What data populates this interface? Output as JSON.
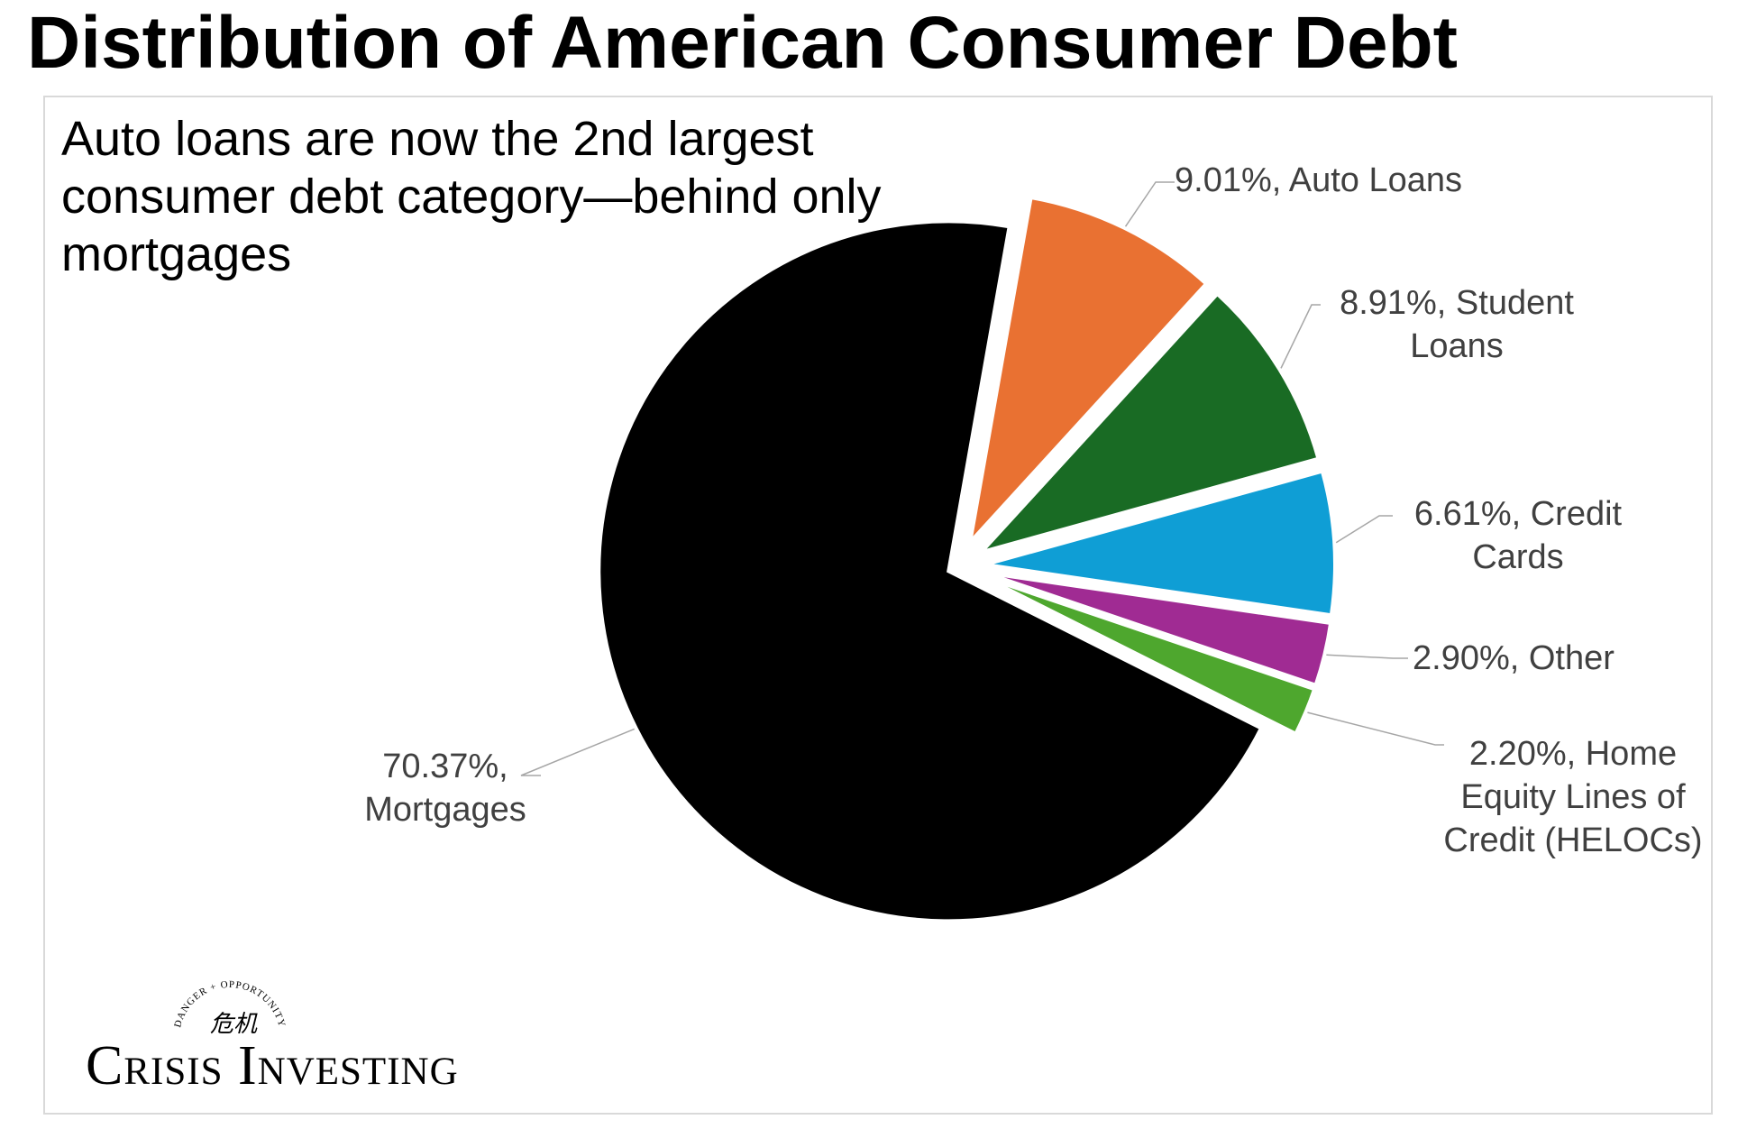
{
  "title": "Distribution of American Consumer Debt",
  "subtitle": "Auto loans are now the 2nd largest consumer debt category—behind only mortgages",
  "logo": {
    "tagline": "DANGER + OPPORTUNITY",
    "glyph": "危机",
    "name": "Crisis Investing"
  },
  "chart_data": {
    "type": "pie",
    "title": "",
    "slices": [
      {
        "name": "Auto Loans",
        "value": 9.01,
        "label_lines": [
          "9.01%, Auto Loans"
        ],
        "color": "#E97132"
      },
      {
        "name": "Student Loans",
        "value": 8.91,
        "label_lines": [
          "8.91%, Student",
          "Loans"
        ],
        "color": "#196B24"
      },
      {
        "name": "Credit Cards",
        "value": 6.61,
        "label_lines": [
          "6.61%, Credit",
          "Cards"
        ],
        "color": "#0F9ED5"
      },
      {
        "name": "Other",
        "value": 2.9,
        "label_lines": [
          "2.90%, Other"
        ],
        "color": "#A02B93"
      },
      {
        "name": "Home Equity Lines of Credit (HELOCs)",
        "value": 2.2,
        "label_lines": [
          "2.20%, Home",
          "Equity Lines of",
          "Credit (HELOCs)"
        ],
        "color": "#4EA72E"
      },
      {
        "name": "Mortgages",
        "value": 70.37,
        "label_lines": [
          "70.37%,",
          "Mortgages"
        ],
        "color": "#000000"
      }
    ],
    "start_slice": "Auto Loans",
    "direction": "clockwise",
    "exploded": true,
    "label_color": "#404040",
    "leader_line_color": "#a6a6a6",
    "legend": "none"
  }
}
